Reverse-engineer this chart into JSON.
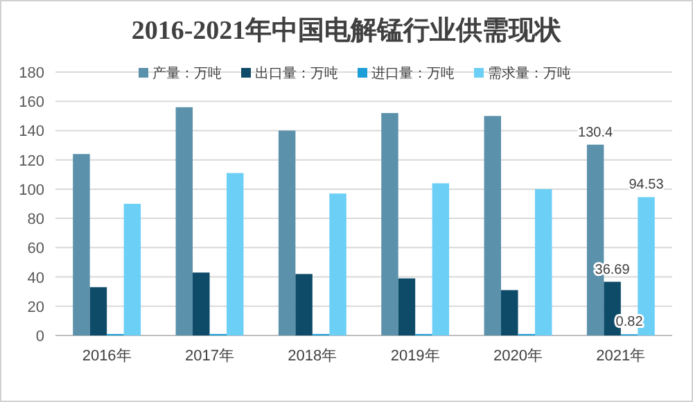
{
  "chart_data": {
    "type": "bar",
    "title": "2016-2021年中国电解锰行业供需现状",
    "categories": [
      "2016年",
      "2017年",
      "2018年",
      "2019年",
      "2020年",
      "2021年"
    ],
    "series": [
      {
        "name": "产量：万吨",
        "color": "#5b91aa",
        "values": [
          124,
          156,
          140,
          152,
          150,
          130.4
        ],
        "value_labels": [
          null,
          null,
          null,
          null,
          null,
          "130.4"
        ]
      },
      {
        "name": "出口量：万吨",
        "color": "#0d4b69",
        "values": [
          33,
          43,
          42,
          39,
          31,
          36.69
        ],
        "value_labels": [
          null,
          null,
          null,
          null,
          null,
          "36.69"
        ]
      },
      {
        "name": "进口量：万吨",
        "color": "#1c9ed8",
        "values": [
          1,
          1,
          1,
          1,
          1,
          0.82
        ],
        "value_labels": [
          null,
          null,
          null,
          null,
          null,
          "0.82"
        ]
      },
      {
        "name": "需求量：万吨",
        "color": "#6ccff6",
        "values": [
          90,
          111,
          97,
          104,
          100,
          94.53
        ],
        "value_labels": [
          null,
          null,
          null,
          null,
          null,
          "94.53"
        ]
      }
    ],
    "ylim": [
      0,
      180
    ],
    "yticks": [
      0,
      20,
      40,
      60,
      80,
      100,
      120,
      140,
      160,
      180
    ],
    "grid": "y",
    "legend": "top"
  }
}
